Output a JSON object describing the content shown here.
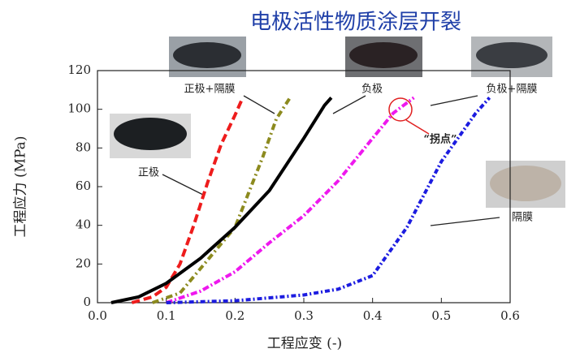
{
  "chart_data": {
    "type": "line",
    "title": "电极活性物质涂层开裂",
    "x_label": "工程应变 (-)",
    "y_label": "工程应力 (MPa)",
    "annotation": "“拐点”",
    "xlim": [
      0,
      0.6
    ],
    "ylim": [
      0,
      120
    ],
    "xticks": [
      {
        "value": 0,
        "label": "0.0"
      },
      0.1,
      0.2,
      0.3,
      0.4,
      0.5,
      0.6
    ],
    "yticks": [
      0,
      20,
      40,
      60,
      80,
      100,
      120
    ],
    "series": [
      {
        "name": "正极",
        "color": "#ee1c1c",
        "x": [
          0.05,
          0.08,
          0.1,
          0.12,
          0.14,
          0.16,
          0.18,
          0.2,
          0.21
        ],
        "values": [
          0,
          3,
          8,
          20,
          40,
          62,
          82,
          97,
          105
        ]
      },
      {
        "name": "正极+隔膜",
        "color": "#8c8a1e",
        "x": [
          0.08,
          0.12,
          0.16,
          0.2,
          0.22,
          0.24,
          0.26,
          0.28
        ],
        "values": [
          0,
          5,
          22,
          39,
          57,
          75,
          95,
          106
        ]
      },
      {
        "name": "负极",
        "color": "#000000",
        "x": [
          0.02,
          0.06,
          0.1,
          0.15,
          0.2,
          0.25,
          0.3,
          0.33,
          0.34
        ],
        "values": [
          0,
          3,
          10,
          23,
          39,
          58,
          85,
          102,
          106
        ]
      },
      {
        "name": "负极+隔膜",
        "color": "#ee18ee",
        "x": [
          0.1,
          0.15,
          0.2,
          0.25,
          0.3,
          0.35,
          0.4,
          0.43,
          0.46
        ],
        "values": [
          0,
          6,
          16,
          31,
          45,
          63,
          85,
          98,
          106
        ]
      },
      {
        "name": "隔膜",
        "color": "#1c1ce0",
        "x": [
          0.1,
          0.2,
          0.3,
          0.35,
          0.4,
          0.45,
          0.5,
          0.55,
          0.57
        ],
        "values": [
          0,
          1,
          4,
          7,
          14,
          39,
          73,
          98,
          106
        ]
      }
    ]
  }
}
